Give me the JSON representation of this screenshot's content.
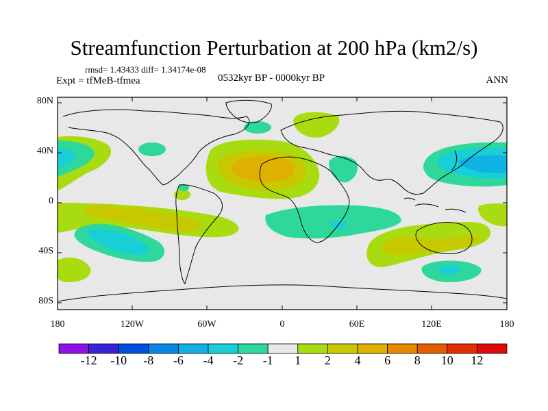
{
  "header": {
    "title": "Streamfunction Perturbation at 200 hPa (km2/s)",
    "stats": "rmsd= 1.43433 diff= 1.34174e-08",
    "experiment": "Expt = tfMeB-tfmea",
    "period": "0532kyr BP - 0000kyr BP",
    "season": "ANN"
  },
  "axes": {
    "lat_labels": [
      "80N",
      "40N",
      "0",
      "40S",
      "80S"
    ],
    "lon_labels": [
      "180",
      "120W",
      "60W",
      "0",
      "60E",
      "120E",
      "180"
    ]
  },
  "colorbar": {
    "labels": [
      "-12",
      "-10",
      "-8",
      "-6",
      "-4",
      "-2",
      "-1",
      "1",
      "2",
      "4",
      "6",
      "8",
      "10",
      "12"
    ],
    "colors": [
      "#9010e8",
      "#3a22d8",
      "#0050e0",
      "#0a86e6",
      "#10b2e4",
      "#18cfd8",
      "#2ed89a",
      "#e8e8e8",
      "#a8dc10",
      "#c8c800",
      "#e0b000",
      "#e88a00",
      "#e45e00",
      "#e03000",
      "#e00808"
    ]
  },
  "map_colors": {
    "land_line": "#000000",
    "neutral": "#e8e8e8"
  }
}
